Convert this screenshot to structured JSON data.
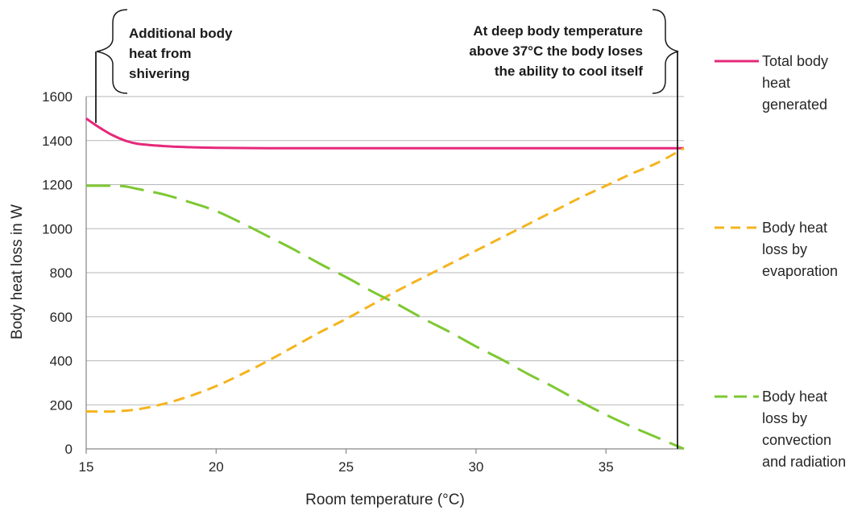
{
  "chart_data": {
    "type": "line",
    "title": "",
    "xlabel": "Room temperature (°C)",
    "ylabel": "Body heat loss in W",
    "xlim": [
      15,
      38
    ],
    "ylim": [
      0,
      1600
    ],
    "xticks": [
      15,
      20,
      25,
      30,
      35
    ],
    "yticks": [
      0,
      200,
      400,
      600,
      800,
      1000,
      1200,
      1400,
      1600
    ],
    "grid": "horizontal",
    "legend_position": "right",
    "series": [
      {
        "name": "Total body heat generated",
        "legend_lines": [
          "Total body",
          "heat",
          "generated"
        ],
        "color": "#e6287a",
        "style": "solid",
        "points": [
          [
            15,
            1500
          ],
          [
            15.5,
            1460
          ],
          [
            16,
            1425
          ],
          [
            16.5,
            1400
          ],
          [
            17,
            1385
          ],
          [
            18,
            1375
          ],
          [
            19,
            1370
          ],
          [
            20,
            1367
          ],
          [
            22,
            1365
          ],
          [
            25,
            1365
          ],
          [
            30,
            1365
          ],
          [
            35,
            1365
          ],
          [
            38,
            1365
          ]
        ]
      },
      {
        "name": "Body heat loss by evaporation",
        "legend_lines": [
          "Body heat",
          "loss by",
          "evaporation"
        ],
        "color": "#f5b41e",
        "style": "dashed",
        "points": [
          [
            15,
            170
          ],
          [
            16,
            170
          ],
          [
            17,
            180
          ],
          [
            18,
            205
          ],
          [
            19,
            240
          ],
          [
            20,
            285
          ],
          [
            21,
            340
          ],
          [
            22,
            400
          ],
          [
            23,
            465
          ],
          [
            24,
            530
          ],
          [
            25,
            590
          ],
          [
            26,
            655
          ],
          [
            27,
            720
          ],
          [
            28,
            780
          ],
          [
            29,
            840
          ],
          [
            30,
            900
          ],
          [
            31,
            960
          ],
          [
            32,
            1020
          ],
          [
            33,
            1080
          ],
          [
            34,
            1140
          ],
          [
            35,
            1195
          ],
          [
            36,
            1250
          ],
          [
            37,
            1300
          ],
          [
            38,
            1365
          ]
        ]
      },
      {
        "name": "Body heat loss by convection and radiation",
        "legend_lines": [
          "Body heat",
          "loss by",
          "convection",
          "and radiation"
        ],
        "color": "#7dc832",
        "style": "longdash",
        "points": [
          [
            15,
            1195
          ],
          [
            16,
            1195
          ],
          [
            16.5,
            1192
          ],
          [
            17,
            1180
          ],
          [
            18,
            1155
          ],
          [
            19,
            1120
          ],
          [
            20,
            1080
          ],
          [
            21,
            1025
          ],
          [
            22,
            965
          ],
          [
            23,
            905
          ],
          [
            24,
            840
          ],
          [
            25,
            780
          ],
          [
            26,
            715
          ],
          [
            27,
            655
          ],
          [
            28,
            590
          ],
          [
            29,
            530
          ],
          [
            30,
            465
          ],
          [
            31,
            405
          ],
          [
            32,
            340
          ],
          [
            33,
            280
          ],
          [
            34,
            215
          ],
          [
            35,
            155
          ],
          [
            36,
            100
          ],
          [
            37,
            50
          ],
          [
            38,
            0
          ]
        ]
      }
    ],
    "annotations": [
      {
        "name": "shivering",
        "lines": [
          "Additional body",
          "heat from",
          "shivering"
        ],
        "x": 15.3,
        "y": 1480
      },
      {
        "name": "deep-body",
        "lines": [
          "At deep body temperature",
          "above 37°C the body loses",
          "the ability to cool itself"
        ],
        "x": 37.8,
        "y": 0
      }
    ]
  }
}
